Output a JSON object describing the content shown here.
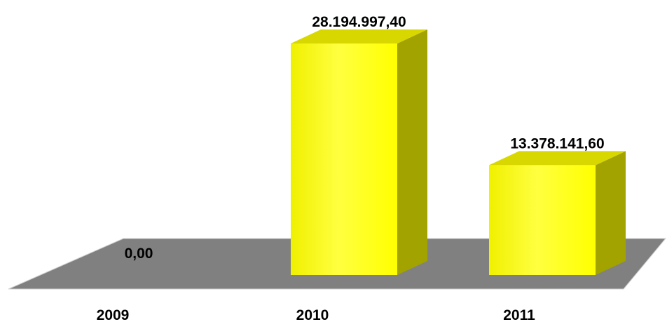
{
  "chart_data": {
    "type": "bar",
    "style": "3d",
    "categories": [
      "2009",
      "2010",
      "2011"
    ],
    "values": [
      0,
      28194997.4,
      13378141.6
    ],
    "data_labels": [
      "0,00",
      "28.194.997,40",
      "13.378.141,60"
    ],
    "title": "",
    "xlabel": "",
    "ylabel": "",
    "ylim": [
      0,
      28194997.4
    ],
    "grid": false,
    "legend": "none",
    "colors": {
      "bar_front": "#ffff00",
      "bar_side": "#a3a300",
      "bar_top": "#d8d800",
      "floor": "#808080",
      "floor_edge": "#d0d0d0"
    }
  }
}
